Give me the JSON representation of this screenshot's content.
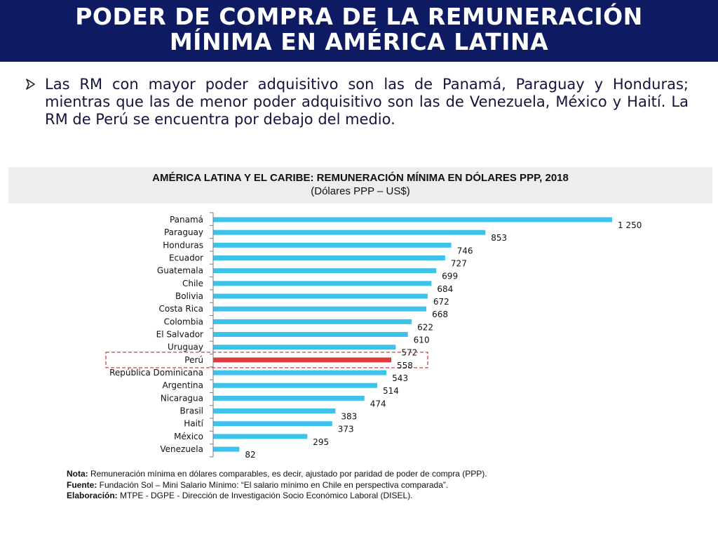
{
  "header": {
    "title_line1": "PODER DE COMPRA DE LA REMUNERACIÓN",
    "title_line2": "MÍNIMA EN AMÉRICA LATINA"
  },
  "bullet": {
    "icon": "arrow-bullet-icon",
    "text": "Las RM con mayor poder adquisitivo son las de Panamá, Paraguay y Honduras; mientras que las de menor poder adquisitivo son las de Venezuela, México y Haití. La RM de Perú se encuentra por debajo del medio."
  },
  "chart_data": {
    "type": "bar",
    "orientation": "horizontal",
    "title": "AMÉRICA LATINA Y EL CARIBE: REMUNERACIÓN MÍNIMA EN DÓLARES PPP, 2018",
    "subtitle": "(Dólares PPP – US$)",
    "categories": [
      "Panamá",
      "Paraguay",
      "Honduras",
      "Ecuador",
      "Guatemala",
      "Chile",
      "Bolivia",
      "Costa Rica",
      "Colombia",
      "El Salvador",
      "Uruguay",
      "Perú",
      "República Dominicana",
      "Argentina",
      "Nicaragua",
      "Brasil",
      "Haití",
      "México",
      "Venezuela"
    ],
    "values": [
      1250,
      853,
      746,
      727,
      699,
      684,
      672,
      668,
      622,
      610,
      572,
      558,
      543,
      514,
      474,
      383,
      373,
      295,
      82
    ],
    "value_labels": [
      "1 250",
      "853",
      "746",
      "727",
      "699",
      "684",
      "672",
      "668",
      "622",
      "610",
      "572",
      "558",
      "543",
      "514",
      "474",
      "383",
      "373",
      "295",
      "82"
    ],
    "xlim": [
      0,
      1250
    ],
    "grid": false,
    "bar_color": "#3dc2ec",
    "highlight_category": "Perú",
    "highlight_color": "#e03a3e",
    "highlight_box_color": "#e03a3e"
  },
  "notes": {
    "nota_label": "Nota:",
    "nota_text": " Remuneración mínima en dólares comparables, es decir, ajustado por paridad de poder de compra (PPP).",
    "fuente_label": "Fuente:",
    "fuente_text": " Fundación Sol – Mini Salario Mínimo: “El salario mínimo en Chile en perspectiva comparada”.",
    "elaboracion_label": "Elaboración:",
    "elaboracion_text": " MTPE - DGPE - Dirección de Investigación Socio Económico Laboral (DISEL)."
  }
}
